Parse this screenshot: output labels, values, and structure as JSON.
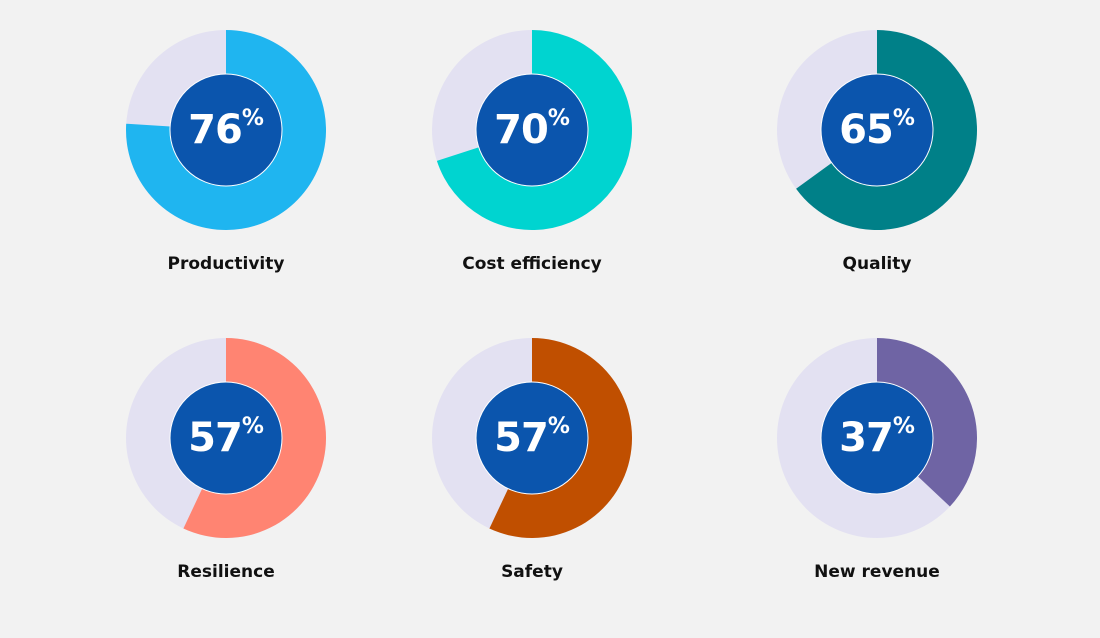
{
  "chart_data": [
    {
      "type": "pie",
      "label": "Productivity",
      "value": 76,
      "unit": "%",
      "color": "#1fb5f0",
      "track_color": "#e3e1f2",
      "center_color": "#0b55ad"
    },
    {
      "type": "pie",
      "label": "Cost efficiency",
      "value": 70,
      "unit": "%",
      "color": "#00d4d0",
      "track_color": "#e3e1f2",
      "center_color": "#0b55ad"
    },
    {
      "type": "pie",
      "label": "Quality",
      "value": 65,
      "unit": "%",
      "color": "#008088",
      "track_color": "#e3e1f2",
      "center_color": "#0b55ad"
    },
    {
      "type": "pie",
      "label": "Resilience",
      "value": 57,
      "unit": "%",
      "color": "#ff8472",
      "track_color": "#e3e1f2",
      "center_color": "#0b55ad"
    },
    {
      "type": "pie",
      "label": "Safety",
      "value": 57,
      "unit": "%",
      "color": "#c04f00",
      "track_color": "#e3e1f2",
      "center_color": "#0b55ad"
    },
    {
      "type": "pie",
      "label": "New revenue",
      "value": 37,
      "unit": "%",
      "color": "#6f64a4",
      "track_color": "#e3e1f2",
      "center_color": "#0b55ad"
    }
  ]
}
